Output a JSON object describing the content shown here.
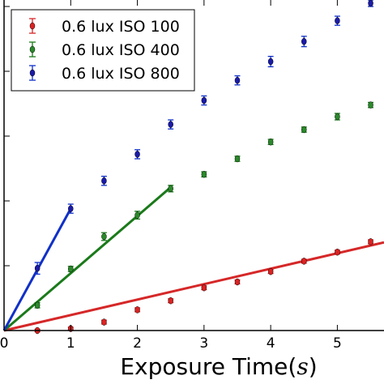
{
  "chart_data": {
    "type": "scatter",
    "xlabel": "Exposure Time(s)",
    "ylabel": "",
    "x_ticks": [
      0,
      1,
      2,
      3,
      4,
      5
    ],
    "xlim": [
      0,
      5.7
    ],
    "ylim": [
      0,
      510
    ],
    "y_tick_positions": [
      100,
      200,
      300,
      400,
      500
    ],
    "grid": false,
    "legend_position": "top-left",
    "series": [
      {
        "name": "0.6 lux ISO 100",
        "color": "#d62728",
        "marker_color": "#dd2222",
        "x": [
          0.5,
          1.0,
          1.5,
          2.0,
          2.5,
          3.0,
          3.5,
          4.0,
          4.5,
          5.0,
          5.5
        ],
        "y": [
          0,
          3,
          13,
          32,
          46,
          66,
          75,
          91,
          107,
          121,
          137
        ],
        "err": [
          2,
          2,
          3,
          3,
          3,
          3,
          3,
          3,
          3,
          3,
          3
        ],
        "fit": [
          [
            0,
            0
          ],
          [
            5.7,
            136
          ]
        ]
      },
      {
        "name": "0.6 lux ISO 400",
        "color": "#1a7a1a",
        "marker_color": "#2a8a2a",
        "x": [
          0.5,
          1.0,
          1.5,
          2.0,
          2.5,
          3.0,
          3.5,
          4.0,
          4.5,
          5.0,
          5.5
        ],
        "y": [
          39,
          95,
          145,
          178,
          219,
          241,
          265,
          291,
          310,
          330,
          348
        ],
        "err": [
          4,
          4,
          6,
          6,
          5,
          4,
          4,
          4,
          4,
          5,
          4
        ],
        "fit": [
          [
            0,
            0
          ],
          [
            2.5,
            221
          ]
        ]
      },
      {
        "name": "0.6 lux ISO 800",
        "color": "#1030c8",
        "marker_color": "#1a1aaa",
        "x": [
          0.5,
          1.0,
          1.5,
          2.0,
          2.5,
          3.0,
          3.5,
          4.0,
          4.5,
          5.0,
          5.5
        ],
        "y": [
          96,
          188,
          231,
          272,
          318,
          355,
          386,
          415,
          446,
          478,
          505
        ],
        "err": [
          9,
          7,
          7,
          7,
          7,
          7,
          7,
          8,
          8,
          7,
          5
        ],
        "fit": [
          [
            0,
            0
          ],
          [
            1.0,
            188
          ]
        ]
      }
    ]
  }
}
